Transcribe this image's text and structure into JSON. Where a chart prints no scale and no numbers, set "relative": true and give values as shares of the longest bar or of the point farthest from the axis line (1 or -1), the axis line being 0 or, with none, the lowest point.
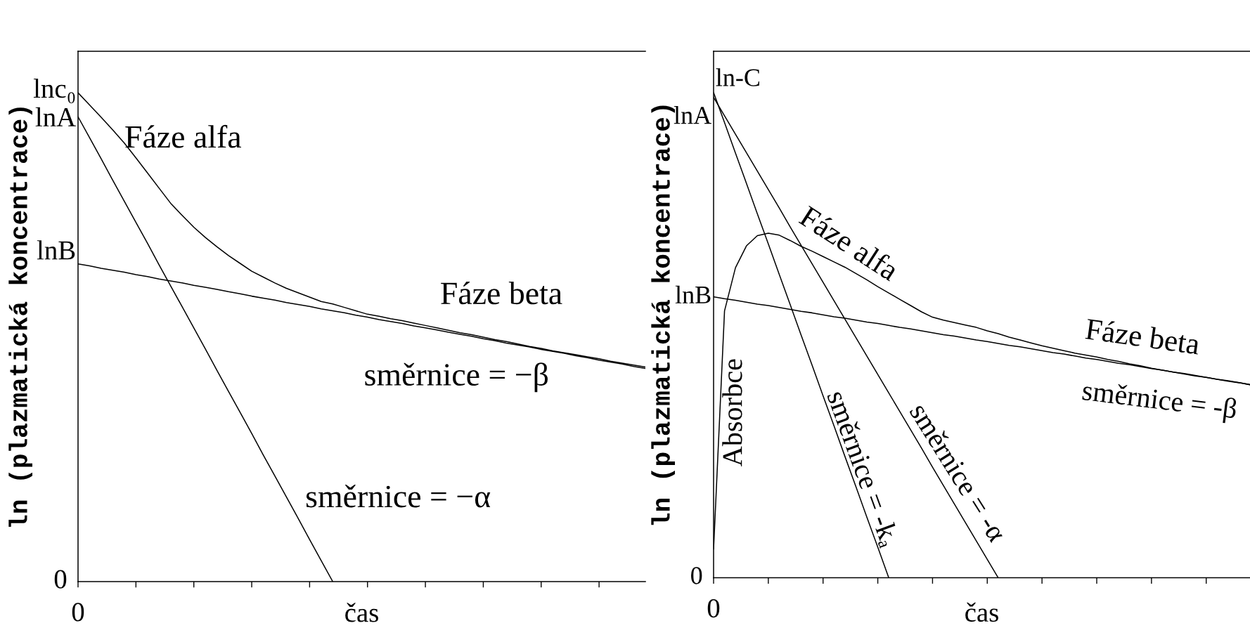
{
  "chart_data": [
    {
      "type": "line",
      "relative": true,
      "xlabel": "čas",
      "ylabel": "ln (plazmatická koncentrace)",
      "categories": [
        null,
        null,
        null,
        null,
        null,
        null,
        null,
        null,
        null,
        null,
        null,
        null,
        null,
        null,
        null,
        null,
        null,
        null,
        null,
        null,
        null,
        null,
        null,
        null,
        null,
        null,
        null,
        null,
        null,
        null,
        null,
        null,
        null,
        null,
        null,
        null,
        null,
        null,
        null,
        null,
        null,
        null,
        null,
        null,
        null,
        null,
        null,
        null,
        null,
        null
      ],
      "series": [
        {
          "color": "#000000",
          "values": [
            1.0,
            0.975,
            0.95,
            0.924,
            0.897,
            0.867,
            0.836,
            0.805,
            0.774,
            0.749,
            0.725,
            0.704,
            0.685,
            0.667,
            0.651,
            0.635,
            0.623,
            0.611,
            0.6,
            0.591,
            0.582,
            0.573,
            0.568,
            0.561,
            0.554,
            0.547,
            0.543,
            0.538,
            0.534,
            0.529,
            0.524,
            0.519,
            0.514,
            0.509,
            0.505,
            0.5,
            0.495,
            0.491,
            0.486,
            0.481,
            0.477,
            0.472,
            0.468,
            0.464,
            0.46,
            0.456,
            0.451,
            0.447,
            0.443,
            0.439
          ]
        },
        {
          "color": "#000000",
          "values": [
            0.65,
            0.646,
            0.641,
            0.637,
            0.633,
            0.628,
            0.624,
            0.619,
            0.615,
            0.611,
            0.606,
            0.602,
            0.598,
            0.593,
            0.589,
            0.584,
            0.58,
            0.576,
            0.571,
            0.567,
            0.563,
            0.558,
            0.554,
            0.55,
            0.545,
            0.541,
            0.536,
            0.532,
            0.528,
            0.523,
            0.519,
            0.515,
            0.51,
            0.506,
            0.502,
            0.497,
            0.493,
            0.488,
            0.484,
            0.48,
            0.475,
            0.471,
            0.467,
            0.462,
            0.458,
            0.453,
            0.449,
            0.445,
            0.44,
            0.436
          ]
        },
        {
          "color": "#000000",
          "values": [
            0.951,
            0.908,
            0.865,
            0.821,
            0.778,
            0.735,
            0.692,
            0.648,
            0.605,
            0.562,
            0.519,
            0.476,
            0.432,
            0.389,
            0.346,
            0.303,
            0.259,
            0.216,
            0.173,
            0.13,
            0.086,
            0.043,
            0,
            null,
            null,
            null,
            null,
            null,
            null,
            null,
            null,
            null,
            null,
            null,
            null,
            null,
            null,
            null,
            null,
            null,
            null,
            null,
            null,
            null,
            null,
            null,
            null,
            null,
            null,
            null
          ]
        }
      ],
      "annotations": [
        "lnc₀",
        "lnA",
        "lnB",
        "0",
        "0",
        "Fáze alfa",
        "Fáze beta",
        "směrnice = −β",
        "směrnice = −α"
      ]
    },
    {
      "type": "line",
      "relative": true,
      "xlabel": "čas",
      "ylabel": "ln (plazmatická koncentrace)",
      "categories": [
        null,
        null,
        null,
        null,
        null,
        null,
        null,
        null,
        null,
        null,
        null,
        null,
        null,
        null,
        null,
        null,
        null,
        null,
        null,
        null,
        null,
        null,
        null,
        null,
        null,
        null,
        null,
        null,
        null,
        null,
        null,
        null,
        null,
        null,
        null,
        null,
        null,
        null,
        null,
        null,
        null,
        null,
        null,
        null,
        null,
        null,
        null,
        null,
        null,
        null
      ],
      "series": [
        {
          "color": "#000000",
          "values": [
            0.059,
            0.55,
            0.639,
            0.684,
            0.705,
            0.71,
            0.706,
            0.695,
            0.683,
            0.673,
            0.662,
            0.651,
            0.64,
            0.627,
            0.614,
            0.6,
            0.587,
            0.574,
            0.561,
            0.548,
            0.537,
            0.531,
            0.526,
            0.521,
            0.516,
            0.509,
            0.503,
            0.496,
            0.49,
            0.484,
            0.478,
            0.473,
            0.468,
            0.463,
            0.459,
            0.455,
            0.45,
            0.446,
            0.441,
            0.437,
            0.432,
            0.428,
            0.424,
            0.421,
            0.417,
            0.413,
            0.409,
            0.406,
            0.402,
            0.398
          ]
        },
        {
          "color": "#000000",
          "values": [
            0.579,
            0.575,
            0.572,
            0.568,
            0.564,
            0.561,
            0.557,
            0.553,
            0.549,
            0.546,
            0.542,
            0.538,
            0.535,
            0.531,
            0.527,
            0.524,
            0.52,
            0.516,
            0.513,
            0.509,
            0.505,
            0.501,
            0.498,
            0.494,
            0.49,
            0.487,
            0.483,
            0.479,
            0.476,
            0.472,
            0.468,
            0.464,
            0.461,
            0.457,
            0.453,
            0.45,
            0.446,
            0.442,
            0.439,
            0.435,
            0.431,
            0.428,
            0.424,
            0.42,
            0.416,
            0.413,
            0.409,
            0.405,
            0.402,
            0.398
          ]
        },
        {
          "color": "#000000",
          "values": [
            1.0,
            0.938,
            0.875,
            0.813,
            0.75,
            0.688,
            0.625,
            0.563,
            0.5,
            0.438,
            0.375,
            0.313,
            0.25,
            0.188,
            0.125,
            0.063,
            0,
            null,
            null,
            null,
            null,
            null,
            null,
            null,
            null,
            null,
            null,
            null,
            null,
            null,
            null,
            null,
            null,
            null,
            null,
            null,
            null,
            null,
            null,
            null,
            null,
            null,
            null,
            null,
            null,
            null,
            null,
            null,
            null,
            null
          ]
        },
        {
          "color": "#000000",
          "values": [
            0.99,
            0.952,
            0.914,
            0.876,
            0.838,
            0.8,
            0.762,
            0.723,
            0.685,
            0.647,
            0.609,
            0.571,
            0.533,
            0.495,
            0.457,
            0.419,
            0.381,
            0.343,
            0.305,
            0.267,
            0.228,
            0.19,
            0.152,
            0.114,
            0.076,
            0.038,
            0,
            null,
            null,
            null,
            null,
            null,
            null,
            null,
            null,
            null,
            null,
            null,
            null,
            null,
            null,
            null,
            null,
            null,
            null,
            null,
            null,
            null,
            null,
            null
          ]
        }
      ],
      "annotations": [
        "ln-C",
        "lnA",
        "lnB",
        "0",
        "0",
        "Fáze alfa",
        "Fáze beta",
        "směrnice = -β",
        "Absorbce",
        "směrnice = -kₐ",
        "směrnice = -α"
      ]
    }
  ]
}
